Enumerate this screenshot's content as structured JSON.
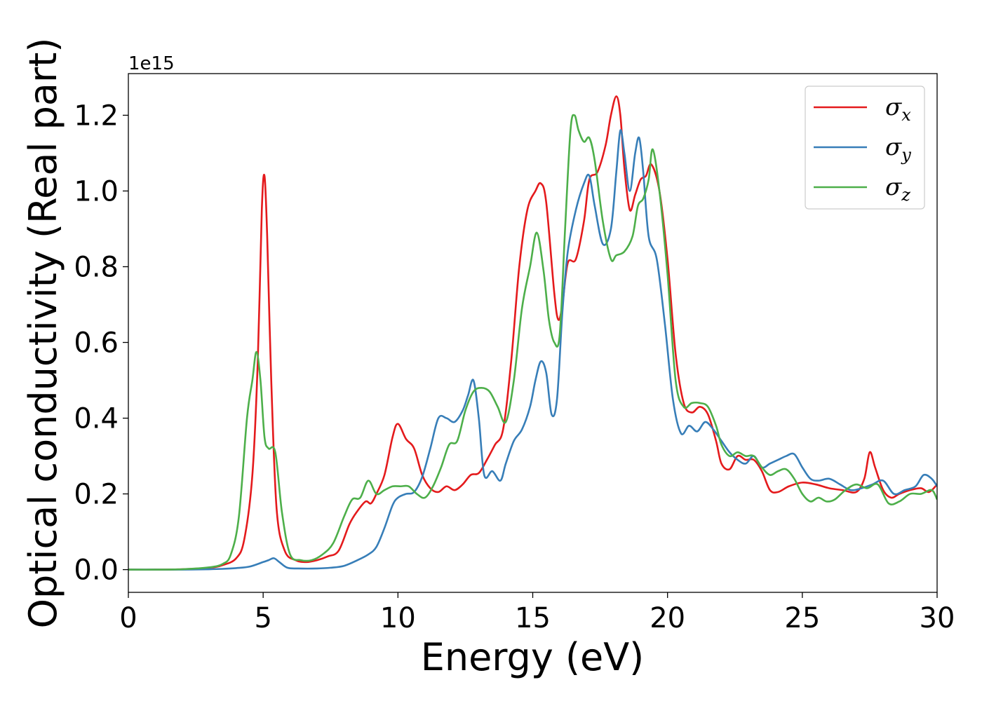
{
  "chart_data": {
    "type": "line",
    "title": "",
    "xlabel": "Energy (eV)",
    "ylabel": "Optical conductivity (Real part)",
    "y_offset_label": "1e15",
    "xlim": [
      0,
      30
    ],
    "ylim": [
      -0.06,
      1.31
    ],
    "xticks": [
      0,
      5,
      10,
      15,
      20,
      25,
      30
    ],
    "xtick_labels": [
      "0",
      "5",
      "10",
      "15",
      "20",
      "25",
      "30"
    ],
    "yticks": [
      0.0,
      0.2,
      0.4,
      0.6,
      0.8,
      1.0,
      1.2
    ],
    "ytick_labels": [
      "0.0",
      "0.2",
      "0.4",
      "0.6",
      "0.8",
      "1.0",
      "1.2"
    ],
    "grid": false,
    "legend_position": "top-right",
    "series": [
      {
        "name": "σx",
        "legend_symbol": "σ",
        "legend_sub": "x",
        "color": "#e41a1c",
        "x": [
          0,
          1,
          2,
          3,
          3.5,
          4.0,
          4.3,
          4.6,
          4.8,
          4.95,
          5.05,
          5.15,
          5.3,
          5.5,
          5.8,
          6.2,
          6.6,
          7.0,
          7.4,
          7.8,
          8.2,
          8.5,
          8.8,
          9.0,
          9.2,
          9.5,
          9.8,
          10.0,
          10.3,
          10.6,
          10.9,
          11.2,
          11.5,
          11.8,
          12.1,
          12.4,
          12.7,
          13.0,
          13.3,
          13.6,
          13.9,
          14.2,
          14.5,
          14.8,
          15.1,
          15.3,
          15.5,
          15.8,
          15.95,
          16.1,
          16.3,
          16.6,
          16.9,
          17.1,
          17.4,
          17.7,
          17.9,
          18.1,
          18.25,
          18.4,
          18.6,
          18.8,
          19.0,
          19.2,
          19.4,
          19.7,
          20.0,
          20.3,
          20.6,
          20.9,
          21.2,
          21.5,
          21.8,
          22.0,
          22.3,
          22.6,
          22.9,
          23.2,
          23.5,
          23.8,
          24.1,
          24.5,
          25.0,
          25.5,
          26.0,
          26.5,
          27.0,
          27.3,
          27.5,
          27.7,
          28.0,
          28.3,
          28.6,
          29.0,
          29.4,
          29.7,
          30.0
        ],
        "values": [
          0.0,
          0.0,
          0.001,
          0.005,
          0.012,
          0.03,
          0.08,
          0.25,
          0.55,
          0.95,
          1.04,
          0.88,
          0.5,
          0.16,
          0.05,
          0.025,
          0.02,
          0.025,
          0.035,
          0.05,
          0.12,
          0.155,
          0.18,
          0.175,
          0.2,
          0.25,
          0.35,
          0.385,
          0.345,
          0.32,
          0.25,
          0.215,
          0.205,
          0.22,
          0.21,
          0.225,
          0.25,
          0.255,
          0.29,
          0.33,
          0.37,
          0.55,
          0.8,
          0.95,
          1.0,
          1.02,
          0.97,
          0.73,
          0.66,
          0.7,
          0.81,
          0.82,
          0.92,
          1.03,
          1.05,
          1.12,
          1.2,
          1.25,
          1.2,
          1.06,
          0.95,
          0.99,
          1.03,
          1.04,
          1.07,
          1.0,
          0.82,
          0.57,
          0.44,
          0.415,
          0.43,
          0.41,
          0.34,
          0.28,
          0.265,
          0.3,
          0.29,
          0.29,
          0.26,
          0.21,
          0.205,
          0.22,
          0.23,
          0.225,
          0.215,
          0.21,
          0.205,
          0.24,
          0.31,
          0.27,
          0.21,
          0.19,
          0.2,
          0.21,
          0.215,
          0.205,
          0.225
        ]
      },
      {
        "name": "σy",
        "legend_symbol": "σ",
        "legend_sub": "y",
        "color": "#377eb8",
        "x": [
          0,
          1,
          2,
          3,
          3.5,
          4.0,
          4.5,
          5.0,
          5.2,
          5.4,
          5.6,
          5.9,
          6.3,
          7.0,
          7.5,
          8.0,
          8.5,
          8.9,
          9.2,
          9.5,
          9.8,
          10.0,
          10.3,
          10.6,
          10.9,
          11.2,
          11.5,
          11.8,
          12.1,
          12.4,
          12.6,
          12.8,
          13.0,
          13.2,
          13.5,
          13.8,
          14.0,
          14.3,
          14.6,
          14.9,
          15.1,
          15.3,
          15.5,
          15.7,
          15.9,
          16.1,
          16.3,
          16.6,
          16.9,
          17.1,
          17.3,
          17.6,
          17.9,
          18.1,
          18.25,
          18.4,
          18.6,
          18.8,
          18.95,
          19.1,
          19.3,
          19.6,
          19.9,
          20.2,
          20.5,
          20.8,
          21.1,
          21.4,
          21.7,
          22.0,
          22.3,
          22.6,
          22.9,
          23.2,
          23.5,
          23.8,
          24.1,
          24.4,
          24.7,
          25.0,
          25.3,
          25.6,
          26.0,
          26.4,
          26.8,
          27.2,
          27.6,
          28.0,
          28.4,
          28.8,
          29.2,
          29.5,
          29.8,
          30.0
        ],
        "values": [
          0.0,
          0.0,
          0.0,
          0.001,
          0.002,
          0.004,
          0.008,
          0.02,
          0.025,
          0.03,
          0.02,
          0.005,
          0.003,
          0.003,
          0.005,
          0.01,
          0.025,
          0.04,
          0.06,
          0.11,
          0.17,
          0.19,
          0.2,
          0.205,
          0.245,
          0.32,
          0.4,
          0.4,
          0.39,
          0.42,
          0.46,
          0.5,
          0.4,
          0.25,
          0.26,
          0.235,
          0.28,
          0.34,
          0.37,
          0.43,
          0.5,
          0.55,
          0.52,
          0.41,
          0.45,
          0.68,
          0.84,
          0.95,
          1.02,
          1.04,
          0.96,
          0.86,
          0.9,
          1.05,
          1.16,
          1.1,
          1.0,
          1.1,
          1.14,
          1.05,
          0.88,
          0.82,
          0.65,
          0.45,
          0.36,
          0.38,
          0.365,
          0.39,
          0.37,
          0.34,
          0.31,
          0.29,
          0.28,
          0.3,
          0.27,
          0.28,
          0.29,
          0.3,
          0.305,
          0.27,
          0.24,
          0.235,
          0.24,
          0.225,
          0.21,
          0.215,
          0.225,
          0.235,
          0.2,
          0.21,
          0.22,
          0.25,
          0.24,
          0.22
        ]
      },
      {
        "name": "σz",
        "legend_symbol": "σ",
        "legend_sub": "z",
        "color": "#4daf4a",
        "x": [
          0,
          1,
          2,
          3,
          3.5,
          3.8,
          4.1,
          4.4,
          4.6,
          4.75,
          4.9,
          5.05,
          5.2,
          5.45,
          5.7,
          6.0,
          6.4,
          6.8,
          7.2,
          7.6,
          8.0,
          8.3,
          8.6,
          8.9,
          9.2,
          9.5,
          9.8,
          10.1,
          10.4,
          10.7,
          11.0,
          11.3,
          11.6,
          11.9,
          12.2,
          12.5,
          12.8,
          13.1,
          13.4,
          13.7,
          14.0,
          14.3,
          14.6,
          14.9,
          15.15,
          15.4,
          15.6,
          15.8,
          16.0,
          16.2,
          16.4,
          16.55,
          16.7,
          16.9,
          17.1,
          17.3,
          17.6,
          17.9,
          18.1,
          18.4,
          18.7,
          18.9,
          19.1,
          19.3,
          19.45,
          19.7,
          20.0,
          20.3,
          20.6,
          20.9,
          21.2,
          21.5,
          21.8,
          22.0,
          22.3,
          22.6,
          22.9,
          23.2,
          23.5,
          23.8,
          24.1,
          24.4,
          24.7,
          25.0,
          25.3,
          25.6,
          25.9,
          26.2,
          26.6,
          27.0,
          27.4,
          27.8,
          28.2,
          28.6,
          29.0,
          29.4,
          29.8,
          30.0
        ],
        "values": [
          0.0,
          0.0,
          0.001,
          0.006,
          0.015,
          0.04,
          0.14,
          0.4,
          0.5,
          0.575,
          0.5,
          0.35,
          0.32,
          0.31,
          0.15,
          0.04,
          0.025,
          0.025,
          0.04,
          0.07,
          0.14,
          0.185,
          0.19,
          0.235,
          0.2,
          0.21,
          0.22,
          0.22,
          0.22,
          0.2,
          0.19,
          0.22,
          0.27,
          0.33,
          0.34,
          0.42,
          0.47,
          0.48,
          0.47,
          0.43,
          0.39,
          0.5,
          0.69,
          0.8,
          0.89,
          0.79,
          0.66,
          0.6,
          0.62,
          0.9,
          1.16,
          1.2,
          1.16,
          1.13,
          1.14,
          1.08,
          0.92,
          0.82,
          0.83,
          0.84,
          0.88,
          0.96,
          0.98,
          1.03,
          1.11,
          1.0,
          0.78,
          0.5,
          0.43,
          0.44,
          0.44,
          0.43,
          0.38,
          0.33,
          0.3,
          0.31,
          0.3,
          0.3,
          0.27,
          0.25,
          0.26,
          0.265,
          0.24,
          0.2,
          0.18,
          0.19,
          0.18,
          0.185,
          0.21,
          0.225,
          0.215,
          0.225,
          0.175,
          0.18,
          0.2,
          0.2,
          0.21,
          0.185
        ]
      }
    ]
  }
}
